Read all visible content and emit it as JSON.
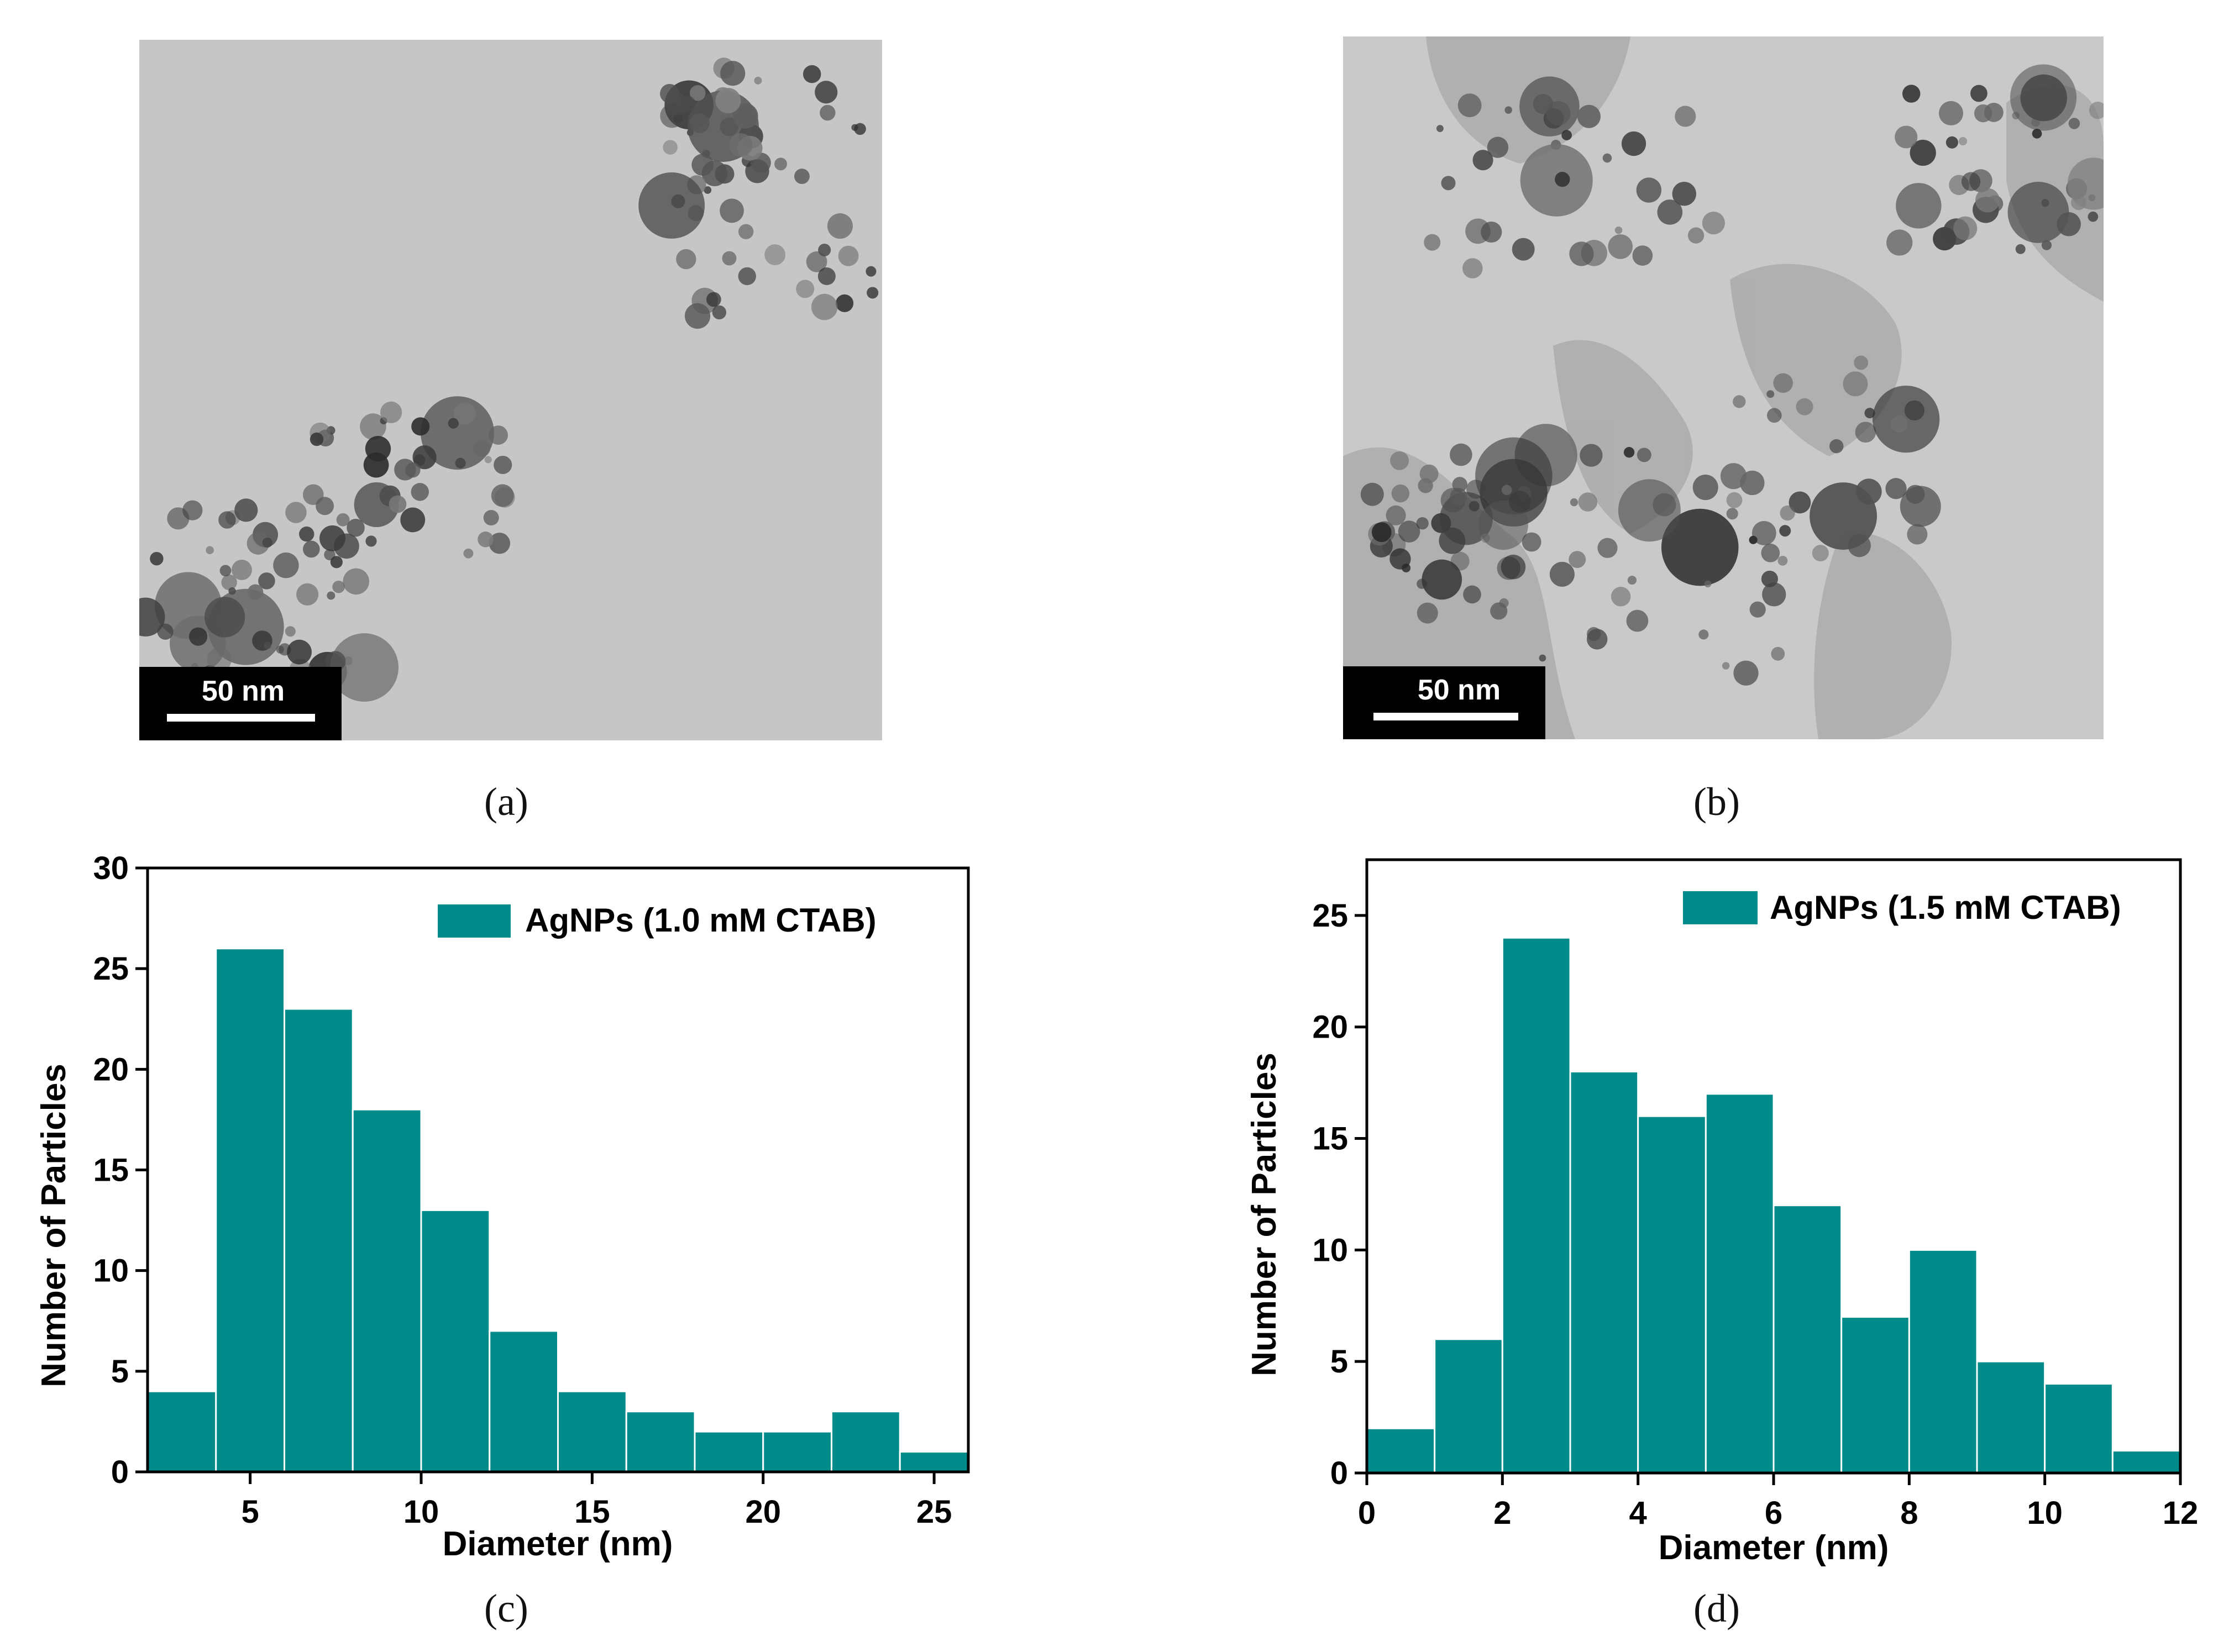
{
  "panels": {
    "a": {
      "label": "(a)",
      "scale_bar": "50 nm"
    },
    "b": {
      "label": "(b)",
      "scale_bar": "50 nm"
    },
    "c": {
      "label": "(c)"
    },
    "d": {
      "label": "(d)"
    }
  },
  "colors": {
    "bar": "#008B8B",
    "tem_bg": "#c4c4c4"
  },
  "chart_data": [
    {
      "id": "c",
      "type": "bar",
      "title": "",
      "legend": "AgNPs (1.0 mM CTAB)",
      "legend_position": "top-right",
      "xlabel": "Diameter (nm)",
      "ylabel": "Number of Particles",
      "xlim": [
        2,
        26
      ],
      "ylim": [
        0,
        30
      ],
      "xticks": [
        5,
        10,
        15,
        20,
        25
      ],
      "yticks": [
        0,
        5,
        10,
        15,
        20,
        25,
        30
      ],
      "bin_edges": [
        2,
        4,
        6,
        8,
        10,
        12,
        14,
        16,
        18,
        20,
        22,
        24,
        26
      ],
      "values": [
        4,
        26,
        23,
        18,
        13,
        7,
        4,
        3,
        2,
        2,
        3,
        1
      ]
    },
    {
      "id": "d",
      "type": "bar",
      "title": "",
      "legend": "AgNPs (1.5 mM CTAB)",
      "legend_position": "top-right",
      "xlabel": "Diameter (nm)",
      "ylabel": "Number of Particles",
      "xlim": [
        0,
        12
      ],
      "ylim": [
        0,
        27.5
      ],
      "xticks": [
        0,
        2,
        4,
        6,
        8,
        10,
        12
      ],
      "yticks": [
        0,
        5,
        10,
        15,
        20,
        25
      ],
      "bin_edges": [
        0,
        1,
        2,
        3,
        4,
        5,
        6,
        7,
        8,
        9,
        10,
        11,
        12
      ],
      "values": [
        2,
        6,
        24,
        18,
        16,
        17,
        12,
        7,
        10,
        5,
        4,
        1
      ]
    }
  ]
}
